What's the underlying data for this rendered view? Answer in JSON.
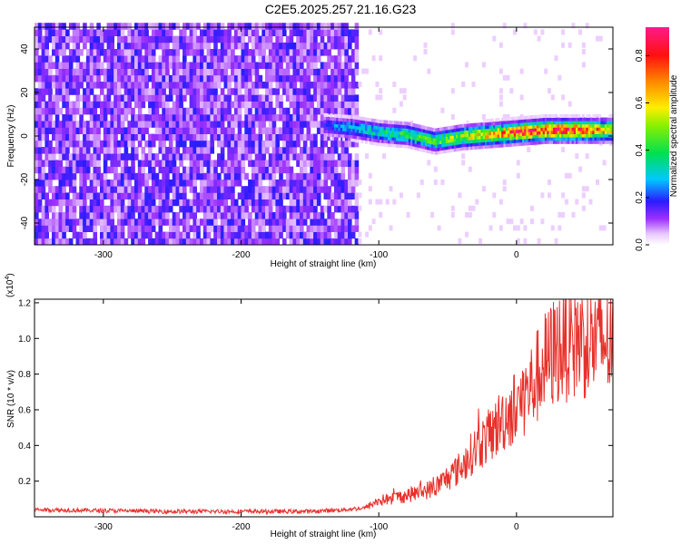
{
  "title": "C2E5.2025.257.21.16.G23",
  "chart_data": [
    {
      "type": "heatmap",
      "xlabel": "Height of straight line (km)",
      "ylabel": "Frequency (Hz)",
      "xlim": [
        -350,
        70
      ],
      "ylim": [
        -50,
        50
      ],
      "x_ticks": [
        -300,
        -200,
        -100,
        0
      ],
      "y_ticks": [
        -40,
        -20,
        0,
        20,
        40
      ],
      "x_tick_labels": [
        "-300",
        "-200",
        "-100",
        "0"
      ],
      "y_tick_labels": [
        "-40",
        "-20",
        "0",
        "20",
        "40"
      ],
      "colorbar": {
        "label": "Normalized spectral amplitude",
        "range": [
          0,
          0.92
        ],
        "ticks": [
          0.0,
          0.2,
          0.4,
          0.6,
          0.8
        ],
        "tick_labels": [
          "0.0",
          "0.2",
          "0.4",
          "0.6",
          "0.8"
        ],
        "colormap": "rainbow (white-purple-blue-cyan-green-yellow-red-magenta)"
      },
      "noise_region": {
        "x_from": -350,
        "x_to": -115,
        "amplitude": 0.1
      },
      "signal_band": {
        "x": [
          -140,
          -120,
          -100,
          -80,
          -60,
          -40,
          -20,
          0,
          20,
          40,
          70
        ],
        "center_freq": [
          4,
          3,
          1,
          0,
          -3,
          -1,
          0,
          1,
          2,
          2,
          2
        ],
        "amplitude": [
          0.2,
          0.3,
          0.35,
          0.4,
          0.45,
          0.55,
          0.65,
          0.8,
          0.85,
          0.85,
          0.6
        ]
      }
    },
    {
      "type": "line",
      "xlabel": "Height of straight line (km)",
      "ylabel": "SNR (10 * v/v)",
      "y_multiplier_label": "(x10",
      "y_multiplier_exp": "4",
      "y_multiplier_close": ")",
      "xlim": [
        -350,
        70
      ],
      "ylim": [
        0,
        1.22
      ],
      "x_ticks": [
        -300,
        -200,
        -100,
        0
      ],
      "y_ticks": [
        0.2,
        0.4,
        0.6,
        0.8,
        1.0,
        1.2
      ],
      "x_tick_labels": [
        "-300",
        "-200",
        "-100",
        "0"
      ],
      "y_tick_labels": [
        "0.2",
        "0.4",
        "0.6",
        "0.8",
        "1.0",
        "1.2"
      ],
      "series": [
        {
          "color": "#e8302a",
          "x": [
            -350,
            -300,
            -250,
            -200,
            -150,
            -125,
            -110,
            -100,
            -80,
            -60,
            -40,
            -30,
            -20,
            -10,
            0,
            10,
            20,
            30,
            40,
            50,
            60,
            70
          ],
          "y": [
            0.04,
            0.035,
            0.03,
            0.03,
            0.03,
            0.04,
            0.05,
            0.09,
            0.12,
            0.16,
            0.28,
            0.38,
            0.45,
            0.55,
            0.62,
            0.72,
            0.85,
            0.95,
            1.0,
            1.0,
            0.98,
            1.0
          ]
        }
      ]
    }
  ]
}
